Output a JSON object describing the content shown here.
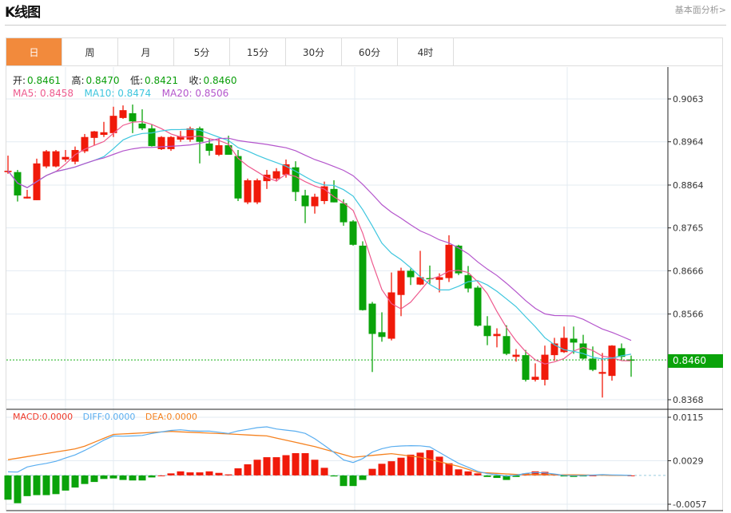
{
  "header": {
    "title": "K线图",
    "link": "基本面分析>"
  },
  "tabs": [
    {
      "label": "日",
      "active": true
    },
    {
      "label": "周"
    },
    {
      "label": "月"
    },
    {
      "label": "5分"
    },
    {
      "label": "15分"
    },
    {
      "label": "30分"
    },
    {
      "label": "60分"
    },
    {
      "label": "4时"
    }
  ],
  "legend": {
    "open_label": "开:",
    "open": "0.8461",
    "high_label": "高:",
    "high": "0.8470",
    "low_label": "低:",
    "low": "0.8421",
    "close_label": "收:",
    "close": "0.8460",
    "ma5": "MA5: 0.8458",
    "ma10": "MA10: 0.8474",
    "ma20": "MA20: 0.8506"
  },
  "macd_legend": {
    "macd": "MACD:0.0000",
    "diff": "DIFF:0.0000",
    "dea": "DEA:0.0000"
  },
  "current_price": "0.8460",
  "colors": {
    "up": "#f01a0a",
    "down": "#0aa30a",
    "ma5": "#ee5a8e",
    "ma10": "#3ec6de",
    "ma20": "#b455cc",
    "diff": "#5aaef0",
    "dea": "#f58220",
    "tab_active": "#f28a3c"
  },
  "chart_data": {
    "type": "candlestick",
    "price_ticks": [
      "0.9063",
      "0.8964",
      "0.8864",
      "0.8765",
      "0.8666",
      "0.8566",
      "0.8368"
    ],
    "price_range": [
      0.8368,
      0.9063
    ],
    "candles": [
      [
        0.8894,
        0.8932,
        0.889,
        0.8897
      ],
      [
        0.8894,
        0.8899,
        0.8826,
        0.884
      ],
      [
        0.8833,
        0.8853,
        0.8833,
        0.8837
      ],
      [
        0.8829,
        0.8925,
        0.8829,
        0.8914
      ],
      [
        0.8907,
        0.8945,
        0.8903,
        0.8942
      ],
      [
        0.8907,
        0.8945,
        0.8905,
        0.8942
      ],
      [
        0.8923,
        0.8945,
        0.8918,
        0.8929
      ],
      [
        0.8918,
        0.8953,
        0.8912,
        0.8945
      ],
      [
        0.8942,
        0.8982,
        0.8938,
        0.8975
      ],
      [
        0.8973,
        0.8989,
        0.8956,
        0.8988
      ],
      [
        0.898,
        0.901,
        0.8975,
        0.8986
      ],
      [
        0.8984,
        0.9045,
        0.8975,
        0.9024
      ],
      [
        0.9019,
        0.9048,
        0.9017,
        0.9037
      ],
      [
        0.903,
        0.905,
        0.8984,
        0.9011
      ],
      [
        0.9006,
        0.9039,
        0.8991,
        0.8995
      ],
      [
        0.8995,
        0.9004,
        0.8953,
        0.8954
      ],
      [
        0.8947,
        0.8977,
        0.8945,
        0.8975
      ],
      [
        0.8947,
        0.8977,
        0.8943,
        0.8975
      ],
      [
        0.8969,
        0.8989,
        0.8964,
        0.8977
      ],
      [
        0.8969,
        0.8999,
        0.8964,
        0.8995
      ],
      [
        0.8995,
        0.8999,
        0.8914,
        0.8964
      ],
      [
        0.896,
        0.8971,
        0.8932,
        0.8943
      ],
      [
        0.8934,
        0.8971,
        0.8931,
        0.8956
      ],
      [
        0.8956,
        0.8978,
        0.8934,
        0.8934
      ],
      [
        0.8931,
        0.8945,
        0.8827,
        0.8833
      ],
      [
        0.8824,
        0.8879,
        0.882,
        0.8875
      ],
      [
        0.8824,
        0.8879,
        0.882,
        0.8875
      ],
      [
        0.8873,
        0.8899,
        0.8855,
        0.8888
      ],
      [
        0.8879,
        0.8903,
        0.8872,
        0.8896
      ],
      [
        0.8888,
        0.8923,
        0.8881,
        0.8912
      ],
      [
        0.8905,
        0.8919,
        0.8827,
        0.8848
      ],
      [
        0.884,
        0.8853,
        0.8776,
        0.8815
      ],
      [
        0.8815,
        0.8844,
        0.8798,
        0.8837
      ],
      [
        0.8827,
        0.8872,
        0.882,
        0.8861
      ],
      [
        0.8855,
        0.8875,
        0.8824,
        0.8824
      ],
      [
        0.8822,
        0.8831,
        0.877,
        0.8778
      ],
      [
        0.878,
        0.8783,
        0.8724,
        0.8726
      ],
      [
        0.8724,
        0.8734,
        0.8574,
        0.8575
      ],
      [
        0.859,
        0.8594,
        0.8432,
        0.852
      ],
      [
        0.8524,
        0.857,
        0.8502,
        0.8513
      ],
      [
        0.8509,
        0.8662,
        0.8505,
        0.8616
      ],
      [
        0.861,
        0.8673,
        0.8561,
        0.8666
      ],
      [
        0.8666,
        0.8671,
        0.8633,
        0.8651
      ],
      [
        0.8634,
        0.8712,
        0.8633,
        0.8651
      ],
      [
        0.8649,
        0.8678,
        0.8636,
        0.8647
      ],
      [
        0.8645,
        0.866,
        0.8616,
        0.8651
      ],
      [
        0.8649,
        0.8748,
        0.864,
        0.8726
      ],
      [
        0.8724,
        0.8726,
        0.8656,
        0.866
      ],
      [
        0.8656,
        0.8677,
        0.8616,
        0.8625
      ],
      [
        0.8627,
        0.8631,
        0.8537,
        0.8539
      ],
      [
        0.8539,
        0.8561,
        0.8494,
        0.8515
      ],
      [
        0.8515,
        0.8533,
        0.8489,
        0.852
      ],
      [
        0.8515,
        0.854,
        0.8471,
        0.8474
      ],
      [
        0.8467,
        0.8485,
        0.8456,
        0.8472
      ],
      [
        0.8471,
        0.8483,
        0.841,
        0.8414
      ],
      [
        0.8414,
        0.8452,
        0.841,
        0.8421
      ],
      [
        0.8414,
        0.8493,
        0.8401,
        0.8472
      ],
      [
        0.8471,
        0.8511,
        0.8458,
        0.8498
      ],
      [
        0.8478,
        0.8537,
        0.8476,
        0.8511
      ],
      [
        0.8509,
        0.8537,
        0.8474,
        0.85
      ],
      [
        0.8498,
        0.8518,
        0.8461,
        0.8463
      ],
      [
        0.8463,
        0.8491,
        0.8434,
        0.8437
      ],
      [
        0.8428,
        0.8476,
        0.8373,
        0.8432
      ],
      [
        0.8423,
        0.8494,
        0.8412,
        0.8493
      ],
      [
        0.8487,
        0.8498,
        0.8458,
        0.8467
      ],
      [
        0.8461,
        0.847,
        0.8421,
        0.846
      ]
    ],
    "macd": {
      "ticks": [
        "0.0115",
        "0.0029",
        "-0.0057"
      ],
      "range": [
        -0.0057,
        0.0115
      ],
      "hist": [
        -0.0048,
        -0.0055,
        -0.0041,
        -0.0039,
        -0.0039,
        -0.0037,
        -0.003,
        -0.0024,
        -0.0017,
        -0.0013,
        -0.0007,
        -0.0006,
        -0.0009,
        -0.001,
        -0.001,
        -0.0004,
        0.0,
        0.0004,
        0.0008,
        0.0006,
        0.0006,
        0.0008,
        0.0005,
        0.0002,
        0.0014,
        0.0022,
        0.0031,
        0.0036,
        0.0036,
        0.004,
        0.0044,
        0.0044,
        0.0031,
        0.0015,
        -0.0002,
        -0.0021,
        -0.0021,
        -0.0009,
        0.0013,
        0.0023,
        0.0028,
        0.0035,
        0.0041,
        0.0045,
        0.005,
        0.0037,
        0.0024,
        0.0012,
        0.0008,
        0.0004,
        -0.0003,
        -0.0005,
        -0.0009,
        -0.0003,
        0.0004,
        0.0008,
        0.0007,
        0.0003,
        -0.0002,
        -0.0003,
        -0.0002,
        0.0,
        0.0002,
        0.0001,
        0.0001,
        0.0
      ],
      "dea_keypoints": [
        [
          0,
          0.0031
        ],
        [
          7.5,
          0.0054
        ],
        [
          11,
          0.0081
        ],
        [
          17,
          0.0087
        ],
        [
          23,
          0.0082
        ],
        [
          27,
          0.0078
        ],
        [
          32,
          0.0057
        ],
        [
          36,
          0.0036
        ],
        [
          40,
          0.0043
        ],
        [
          43,
          0.0036
        ],
        [
          47,
          0.0018
        ],
        [
          49,
          0.0006
        ],
        [
          53,
          0.0002
        ],
        [
          65,
          0.0
        ]
      ]
    }
  }
}
